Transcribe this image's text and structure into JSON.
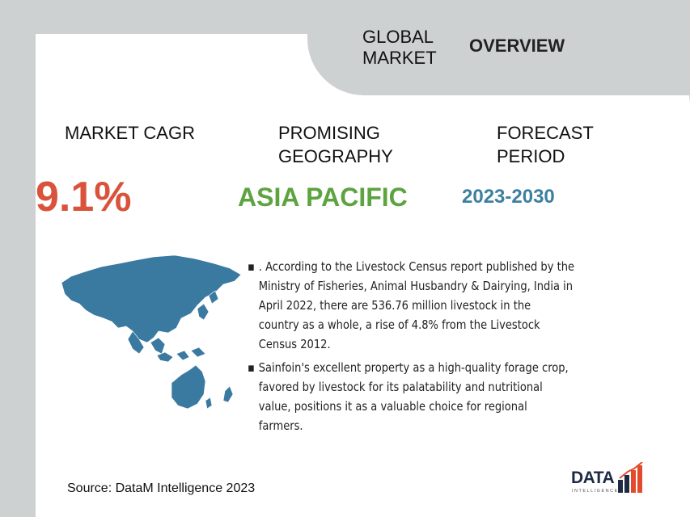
{
  "header": {
    "title_part1": "GLOBAL MARKET",
    "title_part2": "OVERVIEW"
  },
  "metrics": {
    "cagr": {
      "label": "MARKET CAGR",
      "value": "9.1%"
    },
    "geography": {
      "label": "PROMISING GEOGRAPHY",
      "value": "ASIA PACIFIC"
    },
    "forecast": {
      "label": "FORECAST PERIOD",
      "value": "2023-2030"
    }
  },
  "bullets": [
    ". According to the Livestock Census report published by the Ministry of Fisheries, Animal Husbandry & Dairying, India in April 2022, there are 536.76 million livestock in the country as a whole, a rise of 4.8% from the Livestock Census 2012.",
    "Sainfoin's excellent property as a high-quality forage crop, favored by livestock for its palatability and nutritional value, positions it as a valuable choice for regional farmers."
  ],
  "source": "Source: DataM Intelligence 2023",
  "logo": {
    "main": "DATA",
    "sub": "INTELLIGENCE"
  },
  "colors": {
    "cagr": "#d9533c",
    "geography": "#5da33f",
    "forecast": "#3c7fa0",
    "map": "#3b7aa0"
  }
}
